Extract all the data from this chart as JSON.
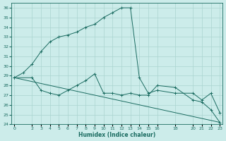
{
  "xlabel": "Humidex (Indice chaleur)",
  "bg_color": "#ccecea",
  "grid_color": "#aad4d0",
  "line_color": "#1a6b60",
  "ylim": [
    24,
    36.5
  ],
  "xlim": [
    -0.3,
    23.3
  ],
  "yticks": [
    24,
    25,
    26,
    27,
    28,
    29,
    30,
    31,
    32,
    33,
    34,
    35,
    36
  ],
  "xticks": [
    0,
    2,
    3,
    4,
    5,
    6,
    7,
    8,
    9,
    10,
    11,
    12,
    13,
    14,
    15,
    16,
    18,
    20,
    21,
    22,
    23
  ],
  "line1_x": [
    0,
    1,
    2,
    3,
    4,
    5,
    6,
    7,
    8,
    9,
    10,
    11,
    12,
    13,
    14,
    15,
    16,
    18,
    20,
    21,
    22,
    23
  ],
  "line1_y": [
    28.8,
    29.3,
    30.2,
    31.5,
    32.5,
    33.0,
    33.2,
    33.5,
    34.0,
    34.3,
    35.0,
    35.5,
    36.0,
    36.0,
    28.8,
    27.2,
    27.5,
    27.2,
    27.2,
    26.5,
    27.2,
    25.2
  ],
  "line2_x": [
    0,
    2,
    3,
    4,
    5,
    6,
    7,
    8,
    9,
    10,
    11,
    12,
    13,
    14,
    15,
    16,
    18,
    20,
    21,
    22,
    23
  ],
  "line2_y": [
    28.8,
    28.8,
    27.5,
    27.2,
    27.0,
    27.5,
    28.0,
    28.5,
    29.2,
    27.2,
    27.2,
    27.0,
    27.2,
    27.0,
    27.0,
    28.0,
    27.8,
    26.5,
    26.3,
    25.5,
    24.2
  ],
  "trend_x": [
    0,
    23
  ],
  "trend_y": [
    28.8,
    24.2
  ]
}
